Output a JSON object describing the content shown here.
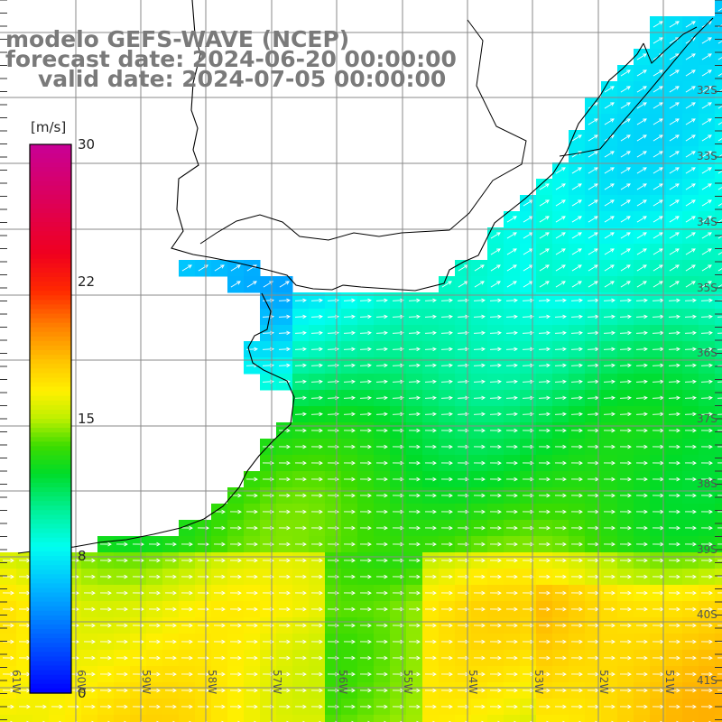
{
  "title": {
    "line1": "modelo GEFS-WAVE (NCEP)",
    "line2": "forecast date: 2024-06-20 00:00:00",
    "line3": "valid date: 2024-07-05 00:00:00"
  },
  "colorbar": {
    "unit": "[m/s]",
    "ticks": [
      {
        "label": "30",
        "value": 30
      },
      {
        "label": "22",
        "value": 22
      },
      {
        "label": "15",
        "value": 15
      },
      {
        "label": "8",
        "value": 8
      },
      {
        "label": "0",
        "value": 0
      }
    ],
    "range": [
      0,
      30
    ]
  },
  "lat_labels": [
    "32S",
    "33S",
    "34S",
    "35S",
    "36S",
    "37S",
    "38S",
    "39S",
    "40S",
    "41S"
  ],
  "lon_labels": [
    "61W",
    "60W",
    "59W",
    "58W",
    "57W",
    "56W",
    "55W",
    "54W",
    "53W",
    "52W",
    "51W"
  ],
  "colors": {
    "coast": "#000000",
    "grid": "#8a8a8a",
    "arrows": "#ffffff",
    "text": "#7a7a7a"
  }
}
